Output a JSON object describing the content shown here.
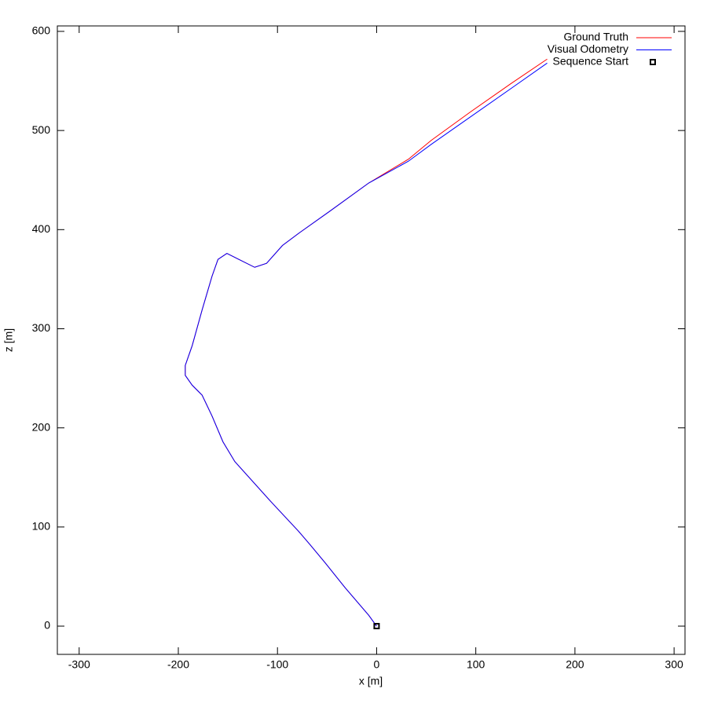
{
  "chart_data": {
    "type": "line",
    "x_label": "x [m]",
    "y_label": "z [m]",
    "xlim": [
      -322,
      311
    ],
    "ylim": [
      -28.5,
      605.5
    ],
    "xticks": [
      -300,
      -200,
      -100,
      0,
      100,
      200,
      300
    ],
    "yticks": [
      0,
      100,
      200,
      300,
      400,
      500,
      600
    ],
    "grid": false,
    "legend": "top-right",
    "series": [
      {
        "name": "Ground Truth",
        "color": "#ff0000",
        "style": "line",
        "x": [
          0,
          -8,
          -32,
          -52,
          -67,
          -79,
          -107,
          -143,
          -155,
          -166,
          -176,
          -186,
          -193,
          -193,
          -186,
          -176,
          -166,
          -160,
          -151,
          -139,
          -123,
          -111,
          -95,
          -79,
          -48,
          -8,
          32,
          55,
          95,
          135,
          172
        ],
        "values": [
          0,
          11,
          39,
          64,
          82,
          96,
          126,
          166,
          186,
          212,
          233,
          243,
          253,
          263,
          283,
          319,
          353,
          370,
          376,
          370,
          362,
          366,
          384,
          396,
          418,
          447,
          471,
          490,
          519,
          547,
          572
        ]
      },
      {
        "name": "Visual Odometry",
        "color": "#0000ff",
        "style": "line",
        "x": [
          0,
          -8,
          -32,
          -52,
          -67,
          -79,
          -107,
          -143,
          -155,
          -166,
          -176,
          -186,
          -193,
          -193,
          -186,
          -176,
          -166,
          -160,
          -151,
          -139,
          -123,
          -111,
          -95,
          -79,
          -48,
          -8,
          32,
          55,
          95,
          135,
          172
        ],
        "values": [
          0,
          11,
          39,
          64,
          82,
          96,
          126,
          166,
          186,
          212,
          233,
          243,
          253,
          263,
          283,
          319,
          353,
          370,
          376,
          370,
          362,
          366,
          384,
          396,
          418,
          447,
          469,
          486,
          514,
          542,
          568
        ]
      },
      {
        "name": "Sequence Start",
        "color": "#000000",
        "style": "point",
        "x": [
          0
        ],
        "values": [
          0
        ]
      }
    ]
  }
}
